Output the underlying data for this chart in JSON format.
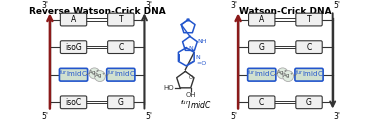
{
  "title_left": "Reverse Watson-Crick DNA",
  "title_right": "Watson-Crick DNA",
  "bg_color": "#ffffff",
  "left_pairs": [
    {
      "left": "A",
      "right": "T",
      "style": "normal",
      "lines": 2
    },
    {
      "left": "isoG",
      "right": "C",
      "style": "normal",
      "lines": 2
    },
    {
      "left": "furImidC",
      "right": "furImidC",
      "style": "metal",
      "lines": 0
    },
    {
      "left": "isoC",
      "right": "G",
      "style": "normal",
      "lines": 2
    }
  ],
  "right_pairs": [
    {
      "left": "A",
      "right": "T",
      "style": "normal",
      "lines": 2
    },
    {
      "left": "G",
      "right": "C",
      "style": "normal",
      "lines": 2
    },
    {
      "left": "furImidC",
      "right": "furImidC",
      "style": "metal",
      "lines": 0
    },
    {
      "left": "C",
      "right": "G",
      "style": "normal",
      "lines": 2
    }
  ],
  "base_fill": "#f0f0f0",
  "base_outline": "#333333",
  "metal_fill": "#d0e0d0",
  "metal_outline": "#2255cc",
  "blue_text": "#2255cc",
  "arrow_red": "#8b1a1a",
  "arrow_black": "#333333"
}
